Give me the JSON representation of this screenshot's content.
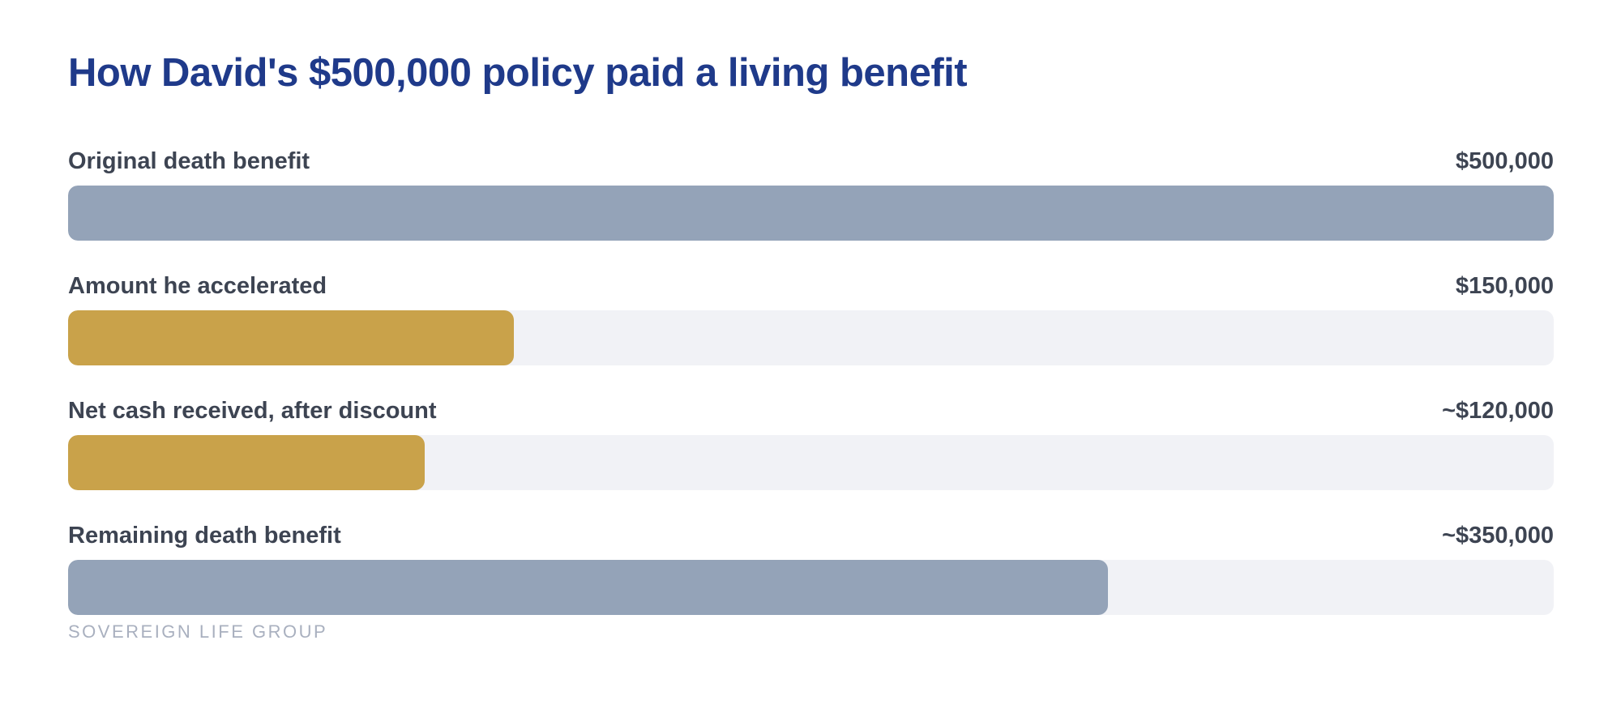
{
  "chart_data": {
    "type": "bar",
    "orientation": "horizontal",
    "title": "How David's $500,000 policy paid a living benefit",
    "xlim": [
      0,
      500000
    ],
    "grid": false,
    "categories": [
      "Original death benefit",
      "Amount he accelerated",
      "Net cash received, after discount",
      "Remaining death benefit"
    ],
    "values": [
      500000,
      150000,
      120000,
      350000
    ],
    "value_labels": [
      "$500,000",
      "$150,000",
      "~$120,000",
      "~$350,000"
    ],
    "bar_colors": [
      "#94a3b8",
      "#c9a24a",
      "#c9a24a",
      "#94a3b8"
    ],
    "track_color": "#f1f2f6"
  },
  "colors": {
    "title": "#1f3a8a",
    "text": "#3d4452",
    "source": "#a9b0bf"
  },
  "source": "SOVEREIGN LIFE GROUP"
}
